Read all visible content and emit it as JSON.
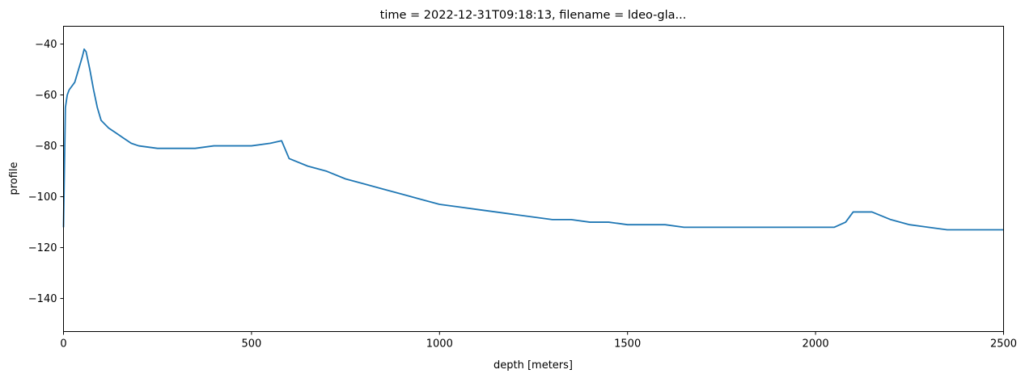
{
  "chart_data": {
    "type": "line",
    "title": "time = 2022-12-31T09:18:13, filename = ldeo-gla...",
    "xlabel": "depth [meters]",
    "ylabel": "profile",
    "xlim": [
      0,
      2500
    ],
    "ylim": [
      -153,
      -33
    ],
    "xticks": [
      0,
      500,
      1000,
      1500,
      2000,
      2500
    ],
    "yticks": [
      -140,
      -120,
      -100,
      -80,
      -60,
      -40
    ],
    "grid": false,
    "legend": "none",
    "series_color": "#1f77b4",
    "series": [
      {
        "x": [
          0,
          5,
          10,
          15,
          20,
          30,
          40,
          50,
          55,
          60,
          70,
          80,
          90,
          100,
          120,
          140,
          160,
          180,
          200,
          250,
          300,
          350,
          400,
          450,
          500,
          550,
          580,
          600,
          650,
          700,
          750,
          800,
          850,
          900,
          950,
          1000,
          1050,
          1100,
          1150,
          1200,
          1250,
          1300,
          1350,
          1400,
          1450,
          1500,
          1550,
          1600,
          1650,
          1700,
          1750,
          1800,
          1850,
          1900,
          1950,
          2000,
          2050,
          2080,
          2100,
          2150,
          2200,
          2250,
          2300,
          2350,
          2400,
          2450,
          2500
        ],
        "y": [
          -112,
          -65,
          -60,
          -58,
          -57,
          -55,
          -50,
          -45,
          -42,
          -43,
          -50,
          -58,
          -65,
          -70,
          -73,
          -75,
          -77,
          -79,
          -80,
          -81,
          -81,
          -81,
          -80,
          -80,
          -80,
          -79,
          -78,
          -85,
          -88,
          -90,
          -93,
          -95,
          -97,
          -99,
          -101,
          -103,
          -104,
          -105,
          -106,
          -107,
          -108,
          -109,
          -109,
          -110,
          -110,
          -111,
          -111,
          -111,
          -112,
          -112,
          -112,
          -112,
          -112,
          -112,
          -112,
          -112,
          -112,
          -110,
          -106,
          -106,
          -109,
          -111,
          -112,
          -113,
          -113,
          -113,
          -113
        ]
      }
    ]
  }
}
